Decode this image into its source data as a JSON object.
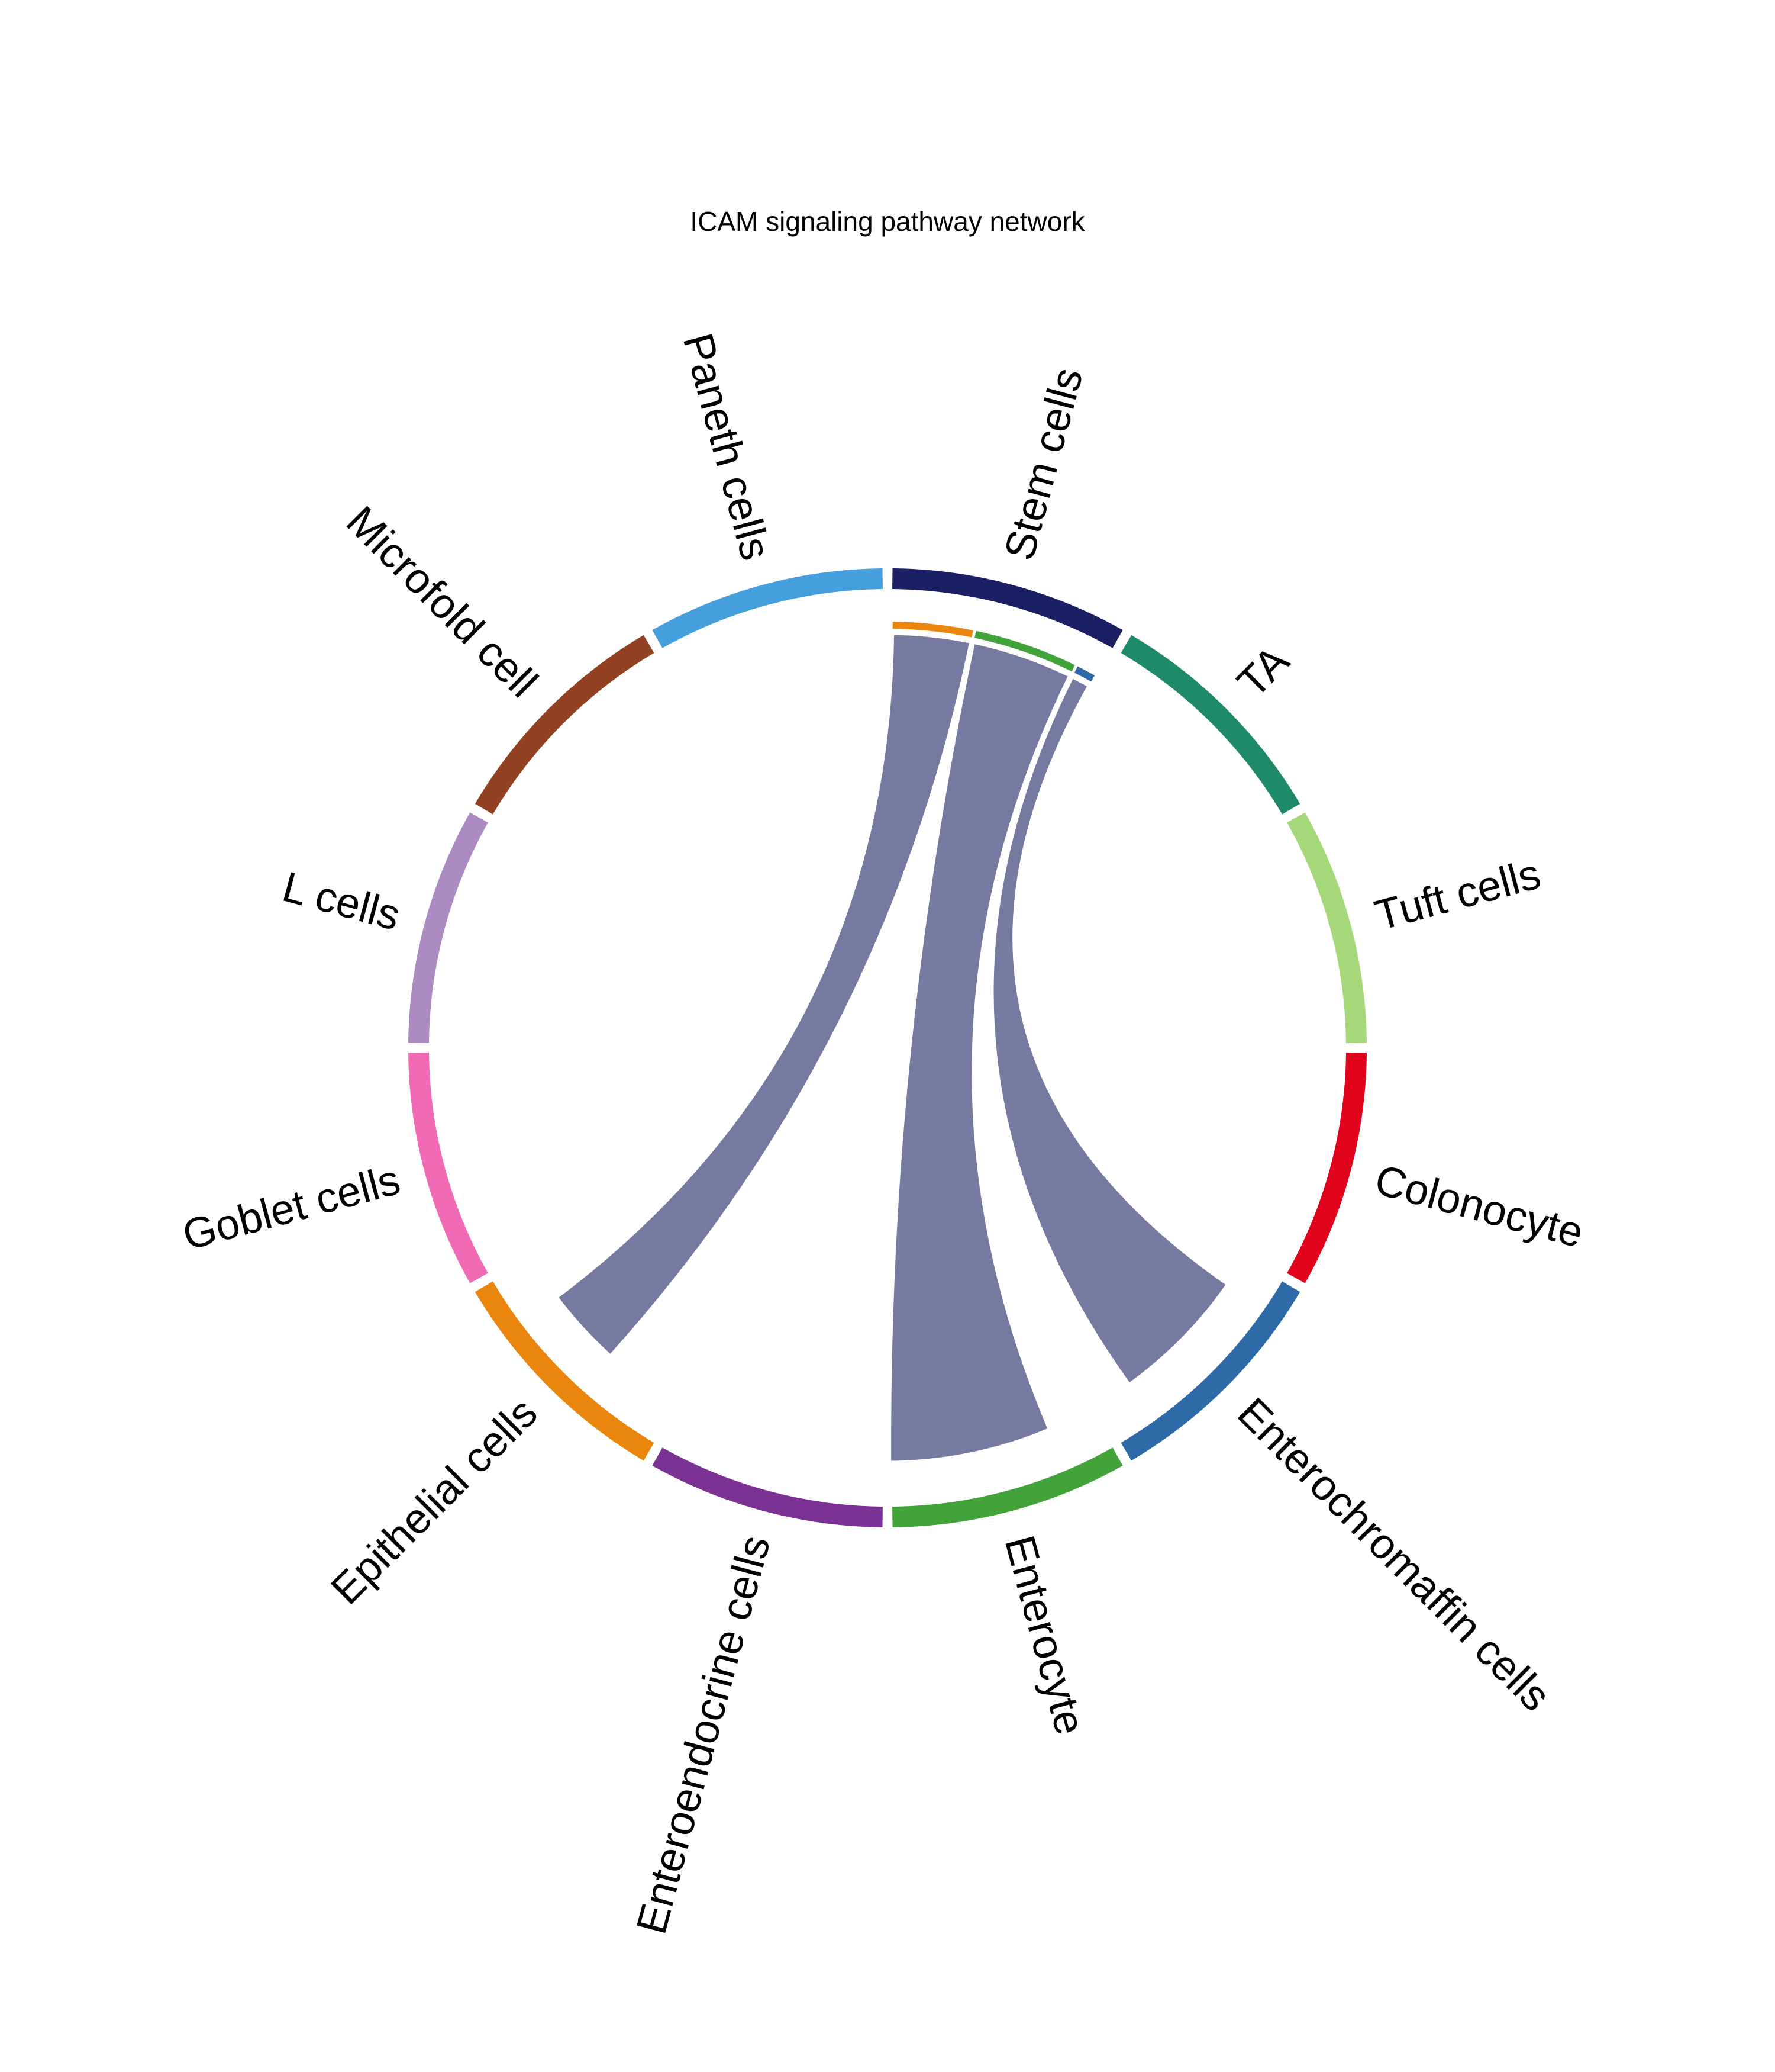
{
  "chart_data": {
    "type": "chord",
    "title": "ICAM signaling pathway network",
    "sectors": [
      {
        "name": "Stem cells",
        "color": "#1B1F64"
      },
      {
        "name": "TA",
        "color": "#1F8A6A"
      },
      {
        "name": "Tuft cells",
        "color": "#A6D879"
      },
      {
        "name": "Colonocyte",
        "color": "#E1031C"
      },
      {
        "name": "Enterochromaffin cells",
        "color": "#2F6AA8"
      },
      {
        "name": "Enterocyte",
        "color": "#41A33A"
      },
      {
        "name": "Enteroendocrine cells",
        "color": "#7B3294"
      },
      {
        "name": "Epithelial cells",
        "color": "#EA850E"
      },
      {
        "name": "Goblet cells",
        "color": "#F06AB5"
      },
      {
        "name": "L cells",
        "color": "#AC8BC3"
      },
      {
        "name": "Microfold cell",
        "color": "#924222"
      },
      {
        "name": "Paneth cells",
        "color": "#449FDC"
      }
    ],
    "links": [
      {
        "source": "Stem cells",
        "target": "Epithelial cells",
        "color": "#767AA0"
      },
      {
        "source": "Stem cells",
        "target": "Enterocyte",
        "color": "#767AA0"
      },
      {
        "source": "Stem cells",
        "target": "Enterochromaffin cells",
        "color": "#767AA0"
      }
    ]
  }
}
